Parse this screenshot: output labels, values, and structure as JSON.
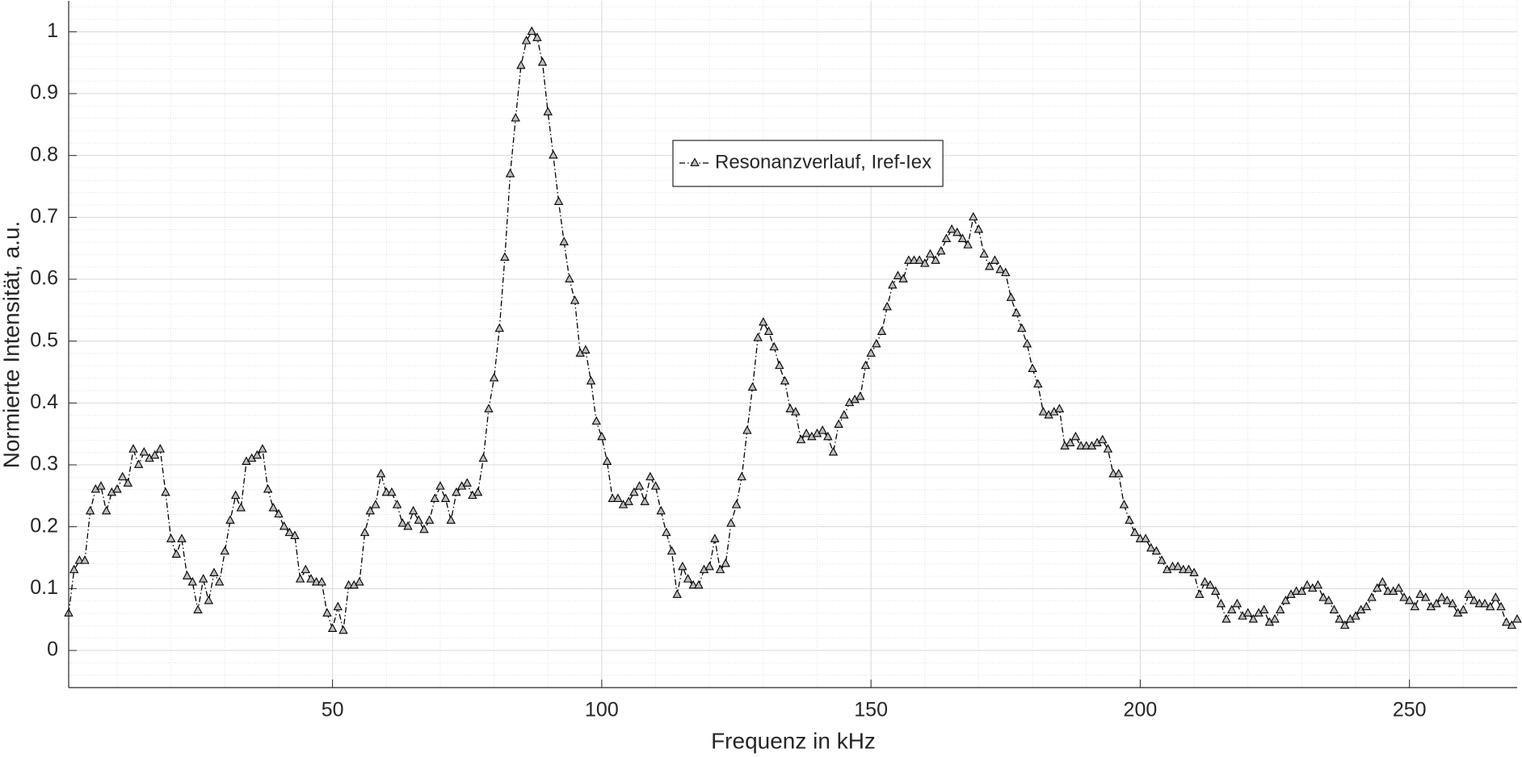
{
  "chart_data": {
    "type": "line",
    "xlabel": "Frequenz in kHz",
    "ylabel": "Normierte Intensität, a.u.",
    "xlim": [
      1,
      270
    ],
    "ylim": [
      -0.06,
      1.05
    ],
    "xticks": [
      50,
      100,
      150,
      200,
      250
    ],
    "yticks": [
      0,
      0.1,
      0.2,
      0.3,
      0.4,
      0.5,
      0.6,
      0.7,
      0.8,
      0.9,
      1
    ],
    "grid": true,
    "minor_grid": true,
    "legend": "north",
    "x": [
      1,
      2,
      3,
      4,
      5,
      6,
      7,
      8,
      9,
      10,
      11,
      12,
      13,
      14,
      15,
      16,
      17,
      18,
      19,
      20,
      21,
      22,
      23,
      24,
      25,
      26,
      27,
      28,
      29,
      30,
      31,
      32,
      33,
      34,
      35,
      36,
      37,
      38,
      39,
      40,
      41,
      42,
      43,
      44,
      45,
      46,
      47,
      48,
      49,
      50,
      51,
      52,
      53,
      54,
      55,
      56,
      57,
      58,
      59,
      60,
      61,
      62,
      63,
      64,
      65,
      66,
      67,
      68,
      69,
      70,
      71,
      72,
      73,
      74,
      75,
      76,
      77,
      78,
      79,
      80,
      81,
      82,
      83,
      84,
      85,
      86,
      87,
      88,
      89,
      90,
      91,
      92,
      93,
      94,
      95,
      96,
      97,
      98,
      99,
      100,
      101,
      102,
      103,
      104,
      105,
      106,
      107,
      108,
      109,
      110,
      111,
      112,
      113,
      114,
      115,
      116,
      117,
      118,
      119,
      120,
      121,
      122,
      123,
      124,
      125,
      126,
      127,
      128,
      129,
      130,
      131,
      132,
      133,
      134,
      135,
      136,
      137,
      138,
      139,
      140,
      141,
      142,
      143,
      144,
      145,
      146,
      147,
      148,
      149,
      150,
      151,
      152,
      153,
      154,
      155,
      156,
      157,
      158,
      159,
      160,
      161,
      162,
      163,
      164,
      165,
      166,
      167,
      168,
      169,
      170,
      171,
      172,
      173,
      174,
      175,
      176,
      177,
      178,
      179,
      180,
      181,
      182,
      183,
      184,
      185,
      186,
      187,
      188,
      189,
      190,
      191,
      192,
      193,
      194,
      195,
      196,
      197,
      198,
      199,
      200,
      201,
      202,
      203,
      204,
      205,
      206,
      207,
      208,
      209,
      210,
      211,
      212,
      213,
      214,
      215,
      216,
      217,
      218,
      219,
      220,
      221,
      222,
      223,
      224,
      225,
      226,
      227,
      228,
      229,
      230,
      231,
      232,
      233,
      234,
      235,
      236,
      237,
      238,
      239,
      240,
      241,
      242,
      243,
      244,
      245,
      246,
      247,
      248,
      249,
      250,
      251,
      252,
      253,
      254,
      255,
      256,
      257,
      258,
      259,
      260,
      261,
      262,
      263,
      264,
      265,
      266,
      267,
      268,
      269,
      270
    ],
    "series": [
      {
        "name": "Resonanzverlauf, Iref-Iex",
        "color": "#000000",
        "marker_fill": "#bdbdbd",
        "values": [
          0.06,
          0.13,
          0.145,
          0.145,
          0.225,
          0.26,
          0.265,
          0.225,
          0.255,
          0.26,
          0.28,
          0.27,
          0.325,
          0.3,
          0.32,
          0.31,
          0.315,
          0.325,
          0.255,
          0.18,
          0.155,
          0.18,
          0.12,
          0.11,
          0.065,
          0.115,
          0.08,
          0.125,
          0.11,
          0.16,
          0.21,
          0.25,
          0.23,
          0.305,
          0.31,
          0.315,
          0.325,
          0.26,
          0.23,
          0.22,
          0.2,
          0.19,
          0.185,
          0.115,
          0.13,
          0.115,
          0.11,
          0.11,
          0.06,
          0.035,
          0.07,
          0.032,
          0.105,
          0.105,
          0.11,
          0.19,
          0.225,
          0.235,
          0.285,
          0.255,
          0.255,
          0.235,
          0.205,
          0.2,
          0.225,
          0.21,
          0.195,
          0.21,
          0.245,
          0.265,
          0.245,
          0.21,
          0.255,
          0.265,
          0.27,
          0.25,
          0.255,
          0.31,
          0.39,
          0.44,
          0.52,
          0.635,
          0.77,
          0.86,
          0.945,
          0.985,
          1.0,
          0.99,
          0.95,
          0.87,
          0.8,
          0.725,
          0.66,
          0.6,
          0.565,
          0.48,
          0.485,
          0.435,
          0.37,
          0.345,
          0.305,
          0.245,
          0.245,
          0.235,
          0.24,
          0.255,
          0.265,
          0.24,
          0.28,
          0.265,
          0.225,
          0.19,
          0.16,
          0.09,
          0.135,
          0.115,
          0.105,
          0.105,
          0.13,
          0.135,
          0.18,
          0.13,
          0.14,
          0.205,
          0.235,
          0.28,
          0.355,
          0.425,
          0.505,
          0.53,
          0.515,
          0.49,
          0.46,
          0.435,
          0.39,
          0.385,
          0.34,
          0.35,
          0.345,
          0.35,
          0.355,
          0.345,
          0.32,
          0.365,
          0.38,
          0.4,
          0.405,
          0.41,
          0.46,
          0.48,
          0.495,
          0.515,
          0.555,
          0.59,
          0.605,
          0.6,
          0.63,
          0.63,
          0.63,
          0.625,
          0.64,
          0.63,
          0.645,
          0.665,
          0.68,
          0.675,
          0.665,
          0.655,
          0.7,
          0.68,
          0.64,
          0.62,
          0.63,
          0.615,
          0.61,
          0.57,
          0.545,
          0.52,
          0.495,
          0.455,
          0.43,
          0.385,
          0.38,
          0.385,
          0.39,
          0.33,
          0.335,
          0.345,
          0.33,
          0.33,
          0.33,
          0.335,
          0.34,
          0.325,
          0.285,
          0.285,
          0.235,
          0.21,
          0.19,
          0.18,
          0.18,
          0.165,
          0.16,
          0.145,
          0.13,
          0.135,
          0.135,
          0.13,
          0.13,
          0.125,
          0.09,
          0.11,
          0.105,
          0.095,
          0.075,
          0.05,
          0.065,
          0.075,
          0.055,
          0.06,
          0.05,
          0.06,
          0.065,
          0.045,
          0.05,
          0.065,
          0.08,
          0.09,
          0.095,
          0.095,
          0.105,
          0.1,
          0.105,
          0.085,
          0.08,
          0.065,
          0.05,
          0.04,
          0.05,
          0.055,
          0.065,
          0.07,
          0.085,
          0.1,
          0.11,
          0.095,
          0.095,
          0.1,
          0.085,
          0.08,
          0.07,
          0.09,
          0.085,
          0.07,
          0.075,
          0.085,
          0.08,
          0.075,
          0.06,
          0.065,
          0.09,
          0.08,
          0.075,
          0.075,
          0.07,
          0.085,
          0.07,
          0.045,
          0.04,
          0.05
        ]
      }
    ]
  }
}
